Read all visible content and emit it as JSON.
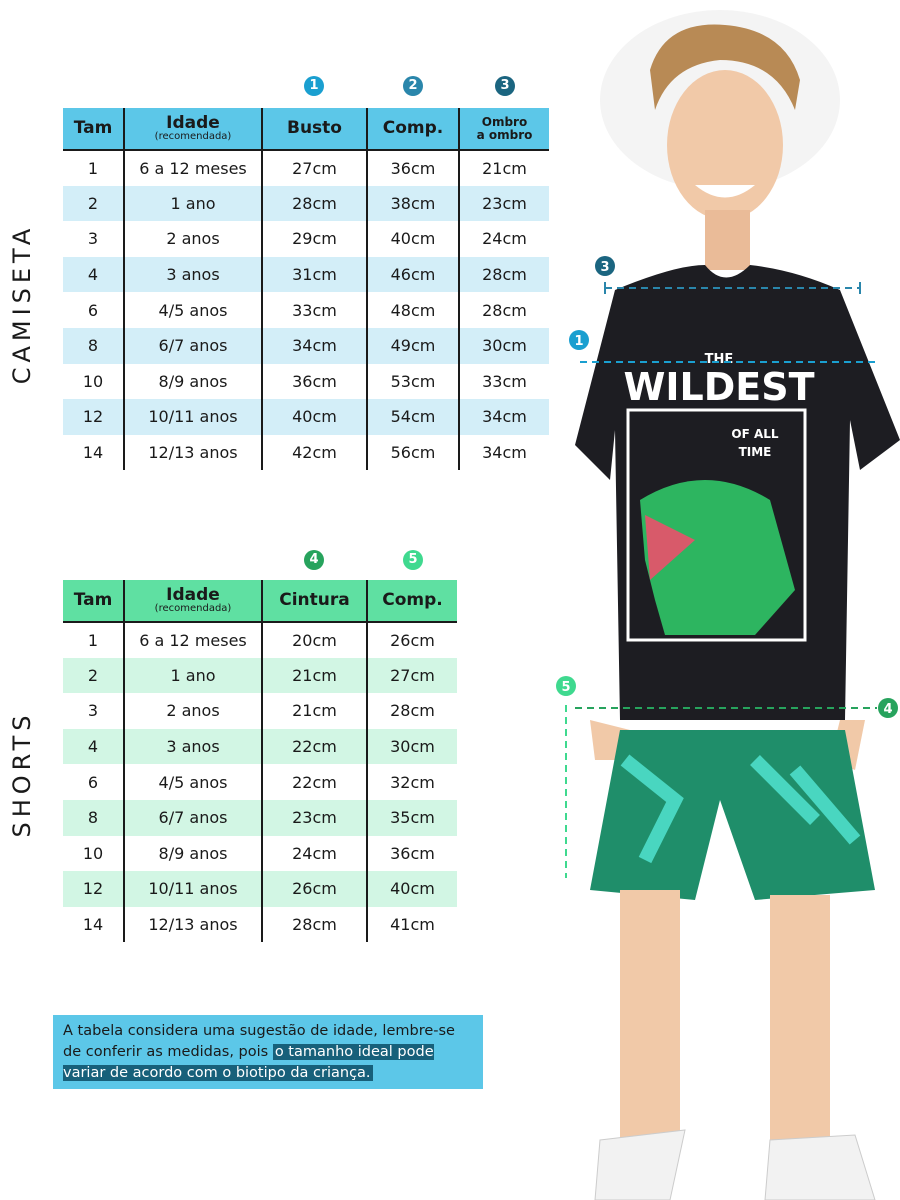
{
  "camiseta": {
    "section_label": "CAMISETA",
    "badges": [
      "1",
      "2",
      "3"
    ],
    "headers": {
      "tam": "Tam",
      "idade": "Idade",
      "idade_sub": "(recomendada)",
      "busto": "Busto",
      "comp": "Comp.",
      "ombro_1": "Ombro",
      "ombro_2": "a ombro"
    },
    "rows": [
      [
        "1",
        "6 a 12 meses",
        "27cm",
        "36cm",
        "21cm"
      ],
      [
        "2",
        "1 ano",
        "28cm",
        "38cm",
        "23cm"
      ],
      [
        "3",
        "2 anos",
        "29cm",
        "40cm",
        "24cm"
      ],
      [
        "4",
        "3 anos",
        "31cm",
        "46cm",
        "28cm"
      ],
      [
        "6",
        "4/5 anos",
        "33cm",
        "48cm",
        "28cm"
      ],
      [
        "8",
        "6/7 anos",
        "34cm",
        "49cm",
        "30cm"
      ],
      [
        "10",
        "8/9 anos",
        "36cm",
        "53cm",
        "33cm"
      ],
      [
        "12",
        "10/11 anos",
        "40cm",
        "54cm",
        "34cm"
      ],
      [
        "14",
        "12/13 anos",
        "42cm",
        "56cm",
        "34cm"
      ]
    ]
  },
  "shorts": {
    "section_label": "SHORTS",
    "badges": [
      "4",
      "5"
    ],
    "headers": {
      "tam": "Tam",
      "idade": "Idade",
      "idade_sub": "(recomendada)",
      "cintura": "Cintura",
      "comp": "Comp."
    },
    "rows": [
      [
        "1",
        "6 a 12 meses",
        "20cm",
        "26cm"
      ],
      [
        "2",
        "1 ano",
        "21cm",
        "27cm"
      ],
      [
        "3",
        "2 anos",
        "21cm",
        "28cm"
      ],
      [
        "4",
        "3 anos",
        "22cm",
        "30cm"
      ],
      [
        "6",
        "4/5 anos",
        "22cm",
        "32cm"
      ],
      [
        "8",
        "6/7 anos",
        "23cm",
        "35cm"
      ],
      [
        "10",
        "8/9 anos",
        "24cm",
        "36cm"
      ],
      [
        "12",
        "10/11 anos",
        "26cm",
        "40cm"
      ],
      [
        "14",
        "12/13 anos",
        "28cm",
        "41cm"
      ]
    ]
  },
  "note": {
    "text_plain": "A tabela considera uma sugestão de idade, lembre-se de conferir as medidas, pois ",
    "text_highlight": "o tamanho ideal pode variar de acordo com o biotipo da criança."
  },
  "photo": {
    "shirt_print_1": "THE",
    "shirt_print_2": "WILDEST",
    "shirt_print_3": "OF ALL",
    "shirt_print_4": "TIME",
    "markers": [
      "3",
      "1",
      "5",
      "4"
    ]
  },
  "colors": {
    "camiseta_header": "#5cc7e8",
    "camiseta_alt_row": "#d3eef8",
    "shorts_header": "#5fe0a2",
    "shorts_alt_row": "#d2f6e4",
    "badge_1": "#1a9fd0",
    "badge_2": "#2a86ab",
    "badge_3": "#1b6580",
    "badge_4": "#27a35d",
    "badge_5": "#3fd98f",
    "note_highlight": "#17607a"
  }
}
